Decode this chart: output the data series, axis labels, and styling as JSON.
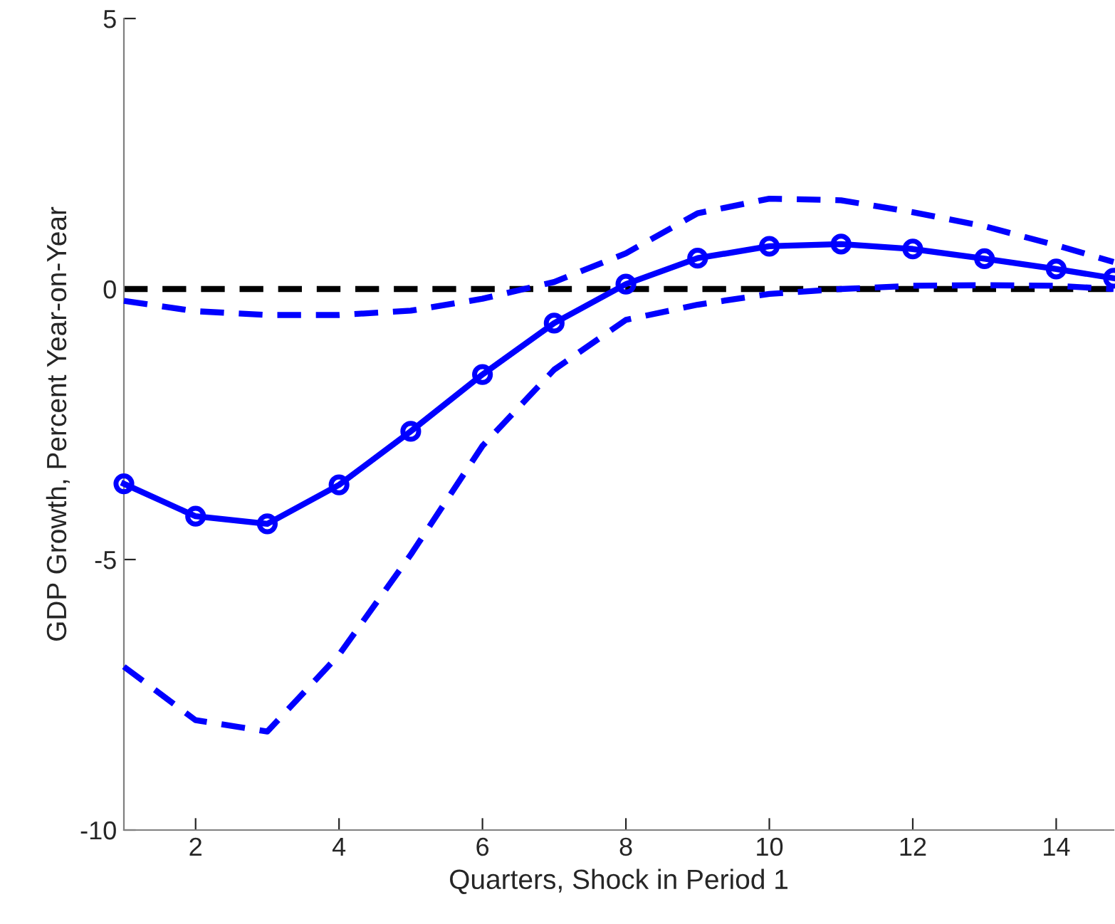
{
  "chart_data": {
    "type": "line",
    "xlabel": "Quarters, Shock in Period 1",
    "ylabel": "GDP Growth, Percent Year-on-Year",
    "x": [
      1,
      2,
      3,
      4,
      5,
      6,
      7,
      8,
      9,
      10,
      11,
      12,
      13,
      14,
      14.8
    ],
    "series": [
      {
        "color": "#0000ff",
        "marker": "circle",
        "line_style": "solid",
        "values": [
          -3.6,
          -4.2,
          -4.34,
          -3.62,
          -2.63,
          -1.58,
          -0.63,
          0.09,
          0.57,
          0.79,
          0.83,
          0.74,
          0.56,
          0.37,
          0.2
        ]
      },
      {
        "color": "#0000ff",
        "marker": "none",
        "line_style": "dashed",
        "values": [
          -0.22,
          -0.41,
          -0.48,
          -0.48,
          -0.4,
          -0.18,
          0.13,
          0.66,
          1.4,
          1.67,
          1.64,
          1.42,
          1.16,
          0.81,
          0.5
        ]
      },
      {
        "color": "#0000ff",
        "marker": "none",
        "line_style": "dashed",
        "values": [
          -6.98,
          -7.97,
          -8.18,
          -6.76,
          -4.91,
          -2.9,
          -1.49,
          -0.57,
          -0.29,
          -0.09,
          0.0,
          0.06,
          0.07,
          0.06,
          0.0
        ]
      }
    ],
    "ref_lines": [
      {
        "axis": "y",
        "value": 0,
        "color": "#000000",
        "line_style": "dashed"
      }
    ],
    "xlim": [
      1,
      14.8
    ],
    "xticks": [
      2,
      4,
      6,
      8,
      10,
      12,
      14
    ],
    "ylim": [
      -10,
      5
    ],
    "yticks": [
      -10,
      -5,
      0,
      5
    ],
    "grid": false,
    "legend": false
  }
}
